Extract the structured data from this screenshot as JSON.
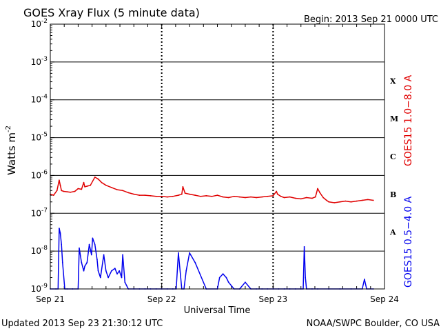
{
  "header": {
    "title": "GOES Xray Flux (5 minute data)",
    "begin": "Begin:  2013 Sep 21 0000 UTC"
  },
  "footer": {
    "updated": "Updated 2013 Sep 23 21:30:12 UTC",
    "source": "NOAA/SWPC Boulder, CO USA"
  },
  "colors": {
    "long_channel": "#e00000",
    "short_channel": "#0000ee",
    "axis": "#000000"
  },
  "chart_data": {
    "type": "line",
    "title": "GOES Xray Flux (5 minute data)",
    "xlabel": "Universal Time",
    "ylabel": "Watts m",
    "ylabel_sup": "-2",
    "yscale": "log",
    "ylim": [
      1e-09,
      0.01
    ],
    "xlim": [
      0,
      3
    ],
    "x_unit": "days since 2013 Sep 21 0000 UTC",
    "x_ticks": [
      {
        "value": 0,
        "label": "Sep 21"
      },
      {
        "value": 1,
        "label": "Sep 22"
      },
      {
        "value": 2,
        "label": "Sep 23"
      },
      {
        "value": 3,
        "label": "Sep 24"
      }
    ],
    "y_ticks": [
      {
        "exp": -9,
        "base": "10",
        "sup": "-9"
      },
      {
        "exp": -8,
        "base": "10",
        "sup": "-8"
      },
      {
        "exp": -7,
        "base": "10",
        "sup": "-7"
      },
      {
        "exp": -6,
        "base": "10",
        "sup": "-6"
      },
      {
        "exp": -5,
        "base": "10",
        "sup": "-5"
      },
      {
        "exp": -4,
        "base": "10",
        "sup": "-4"
      },
      {
        "exp": -3,
        "base": "10",
        "sup": "-3"
      },
      {
        "exp": -2,
        "base": "10",
        "sup": "-2"
      }
    ],
    "flare_classes": [
      {
        "label": "A",
        "exp": -7.5
      },
      {
        "label": "B",
        "exp": -6.5
      },
      {
        "label": "C",
        "exp": -5.5
      },
      {
        "label": "M",
        "exp": -4.5
      },
      {
        "label": "X",
        "exp": -3.5
      }
    ],
    "grid": true,
    "series": [
      {
        "name": "GOES15 1.0−8.0 A",
        "color": "#e00000",
        "x": [
          0.0,
          0.03,
          0.06,
          0.08,
          0.09,
          0.1,
          0.12,
          0.15,
          0.18,
          0.22,
          0.25,
          0.28,
          0.3,
          0.31,
          0.33,
          0.36,
          0.4,
          0.43,
          0.45,
          0.46,
          0.48,
          0.5,
          0.55,
          0.6,
          0.65,
          0.7,
          0.75,
          0.8,
          0.85,
          0.9,
          0.95,
          1.0,
          1.05,
          1.1,
          1.15,
          1.18,
          1.19,
          1.21,
          1.25,
          1.3,
          1.35,
          1.4,
          1.45,
          1.5,
          1.55,
          1.6,
          1.65,
          1.7,
          1.75,
          1.8,
          1.85,
          1.9,
          1.95,
          2.0,
          2.03,
          2.04,
          2.07,
          2.1,
          2.15,
          2.2,
          2.25,
          2.3,
          2.35,
          2.38,
          2.4,
          2.42,
          2.45,
          2.48,
          2.5,
          2.55,
          2.6,
          2.65,
          2.7,
          2.75,
          2.8,
          2.85,
          2.9
        ],
        "y": [
          3.2e-07,
          3e-07,
          4e-07,
          7.5e-07,
          5.5e-07,
          4e-07,
          3.8e-07,
          3.7e-07,
          3.6e-07,
          3.8e-07,
          4.5e-07,
          4.3e-07,
          6.5e-07,
          5e-07,
          5.2e-07,
          5.5e-07,
          9e-07,
          8e-07,
          7e-07,
          6.5e-07,
          6e-07,
          5.5e-07,
          4.8e-07,
          4.2e-07,
          4e-07,
          3.5e-07,
          3.2e-07,
          3e-07,
          3e-07,
          2.9e-07,
          2.8e-07,
          2.8e-07,
          2.7e-07,
          2.8e-07,
          3e-07,
          3.2e-07,
          5e-07,
          3.4e-07,
          3.2e-07,
          3e-07,
          2.8e-07,
          2.9e-07,
          2.8e-07,
          3e-07,
          2.7e-07,
          2.6e-07,
          2.8e-07,
          2.7e-07,
          2.6e-07,
          2.7e-07,
          2.6e-07,
          2.7e-07,
          2.8e-07,
          2.9e-07,
          3.8e-07,
          3.2e-07,
          2.8e-07,
          2.6e-07,
          2.7e-07,
          2.5e-07,
          2.4e-07,
          2.6e-07,
          2.5e-07,
          2.7e-07,
          4.5e-07,
          3.5e-07,
          2.6e-07,
          2.2e-07,
          2e-07,
          1.9e-07,
          2e-07,
          2.1e-07,
          2e-07,
          2.1e-07,
          2.2e-07,
          2.3e-07,
          2.2e-07
        ]
      },
      {
        "name": "GOES15 0.5−4.0 A",
        "color": "#0000ee",
        "x": [
          0.0,
          0.05,
          0.07,
          0.08,
          0.09,
          0.1,
          0.11,
          0.13,
          0.15,
          0.2,
          0.25,
          0.26,
          0.28,
          0.3,
          0.31,
          0.33,
          0.35,
          0.37,
          0.38,
          0.4,
          0.42,
          0.43,
          0.45,
          0.48,
          0.5,
          0.52,
          0.55,
          0.58,
          0.6,
          0.62,
          0.64,
          0.65,
          0.67,
          0.7,
          0.75,
          0.8,
          0.85,
          0.9,
          0.95,
          1.0,
          1.05,
          1.1,
          1.13,
          1.15,
          1.18,
          1.2,
          1.22,
          1.25,
          1.3,
          1.4,
          1.5,
          1.52,
          1.55,
          1.58,
          1.6,
          1.65,
          1.7,
          1.75,
          1.8,
          1.85,
          1.9,
          1.95,
          2.0,
          2.05,
          2.1,
          2.15,
          2.2,
          2.25,
          2.27,
          2.28,
          2.29,
          2.3,
          2.35,
          2.4,
          2.5,
          2.6,
          2.7,
          2.8,
          2.82,
          2.84,
          2.9
        ],
        "y": [
          1e-09,
          1e-09,
          1e-09,
          4e-08,
          3e-08,
          1.5e-08,
          5e-09,
          1e-09,
          1e-09,
          1e-09,
          1e-09,
          1.2e-08,
          5e-09,
          3e-09,
          4e-09,
          5e-09,
          1.5e-08,
          8e-09,
          2.2e-08,
          1.5e-08,
          6e-09,
          3e-09,
          2e-09,
          8e-09,
          3e-09,
          2e-09,
          3e-09,
          3.5e-09,
          2.5e-09,
          3e-09,
          2e-09,
          8e-09,
          1.5e-09,
          1e-09,
          1e-09,
          1e-09,
          1e-09,
          1e-09,
          1e-09,
          1e-09,
          1e-09,
          1e-09,
          1e-09,
          9e-09,
          1e-09,
          1e-09,
          3e-09,
          9e-09,
          5e-09,
          1e-09,
          1e-09,
          2e-09,
          2.5e-09,
          2e-09,
          1.5e-09,
          1e-09,
          1e-09,
          1.5e-09,
          1e-09,
          1e-09,
          1e-09,
          1e-09,
          1e-09,
          1e-09,
          1e-09,
          1e-09,
          1e-09,
          1e-09,
          1e-09,
          1.3e-08,
          2e-09,
          1e-09,
          1e-09,
          1e-09,
          1e-09,
          1e-09,
          1e-09,
          1e-09,
          1.8e-09,
          1e-09,
          1e-09
        ]
      }
    ]
  }
}
